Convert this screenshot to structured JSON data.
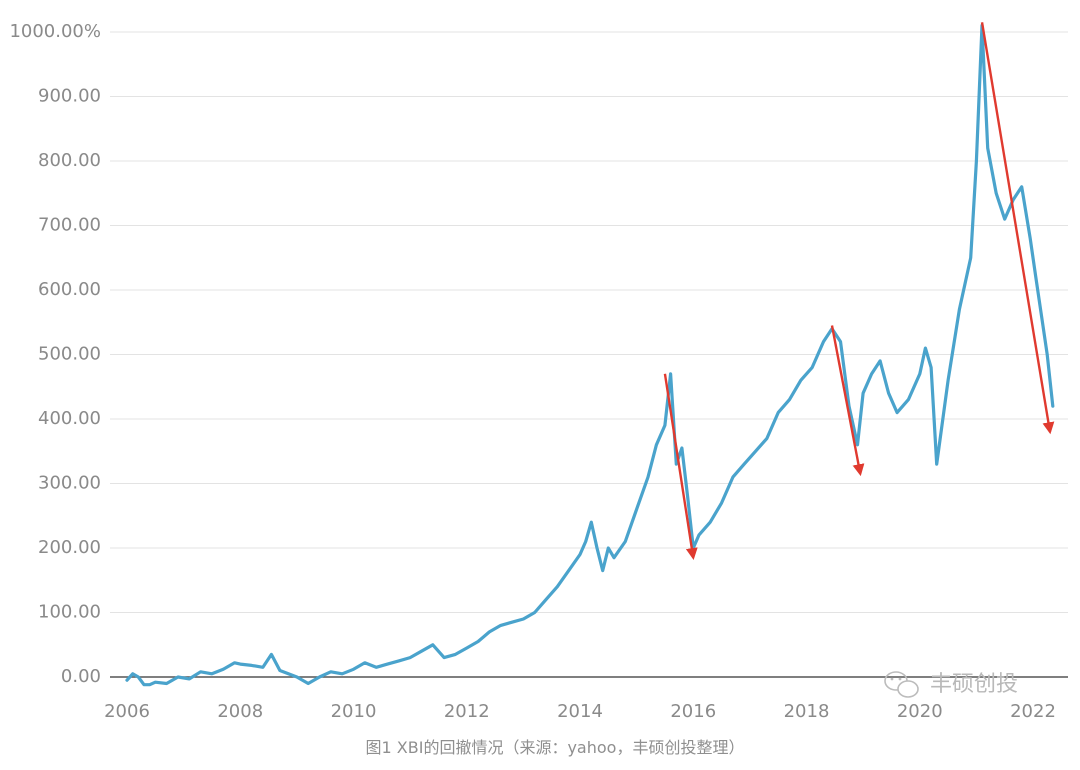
{
  "chart_data": {
    "type": "line",
    "title": "",
    "caption": "图1 XBI的回撤情况（来源：yahoo，丰硕创投整理）",
    "xlabel": "",
    "ylabel": "",
    "xlim": [
      2006,
      2022.4
    ],
    "ylim": [
      0,
      1000
    ],
    "grid": true,
    "y_ticks": [
      {
        "value": 0,
        "label": "0.00"
      },
      {
        "value": 100,
        "label": "100.00"
      },
      {
        "value": 200,
        "label": "200.00"
      },
      {
        "value": 300,
        "label": "300.00"
      },
      {
        "value": 400,
        "label": "400.00"
      },
      {
        "value": 500,
        "label": "500.00"
      },
      {
        "value": 600,
        "label": "600.00"
      },
      {
        "value": 700,
        "label": "700.00"
      },
      {
        "value": 800,
        "label": "800.00"
      },
      {
        "value": 900,
        "label": "900.00"
      },
      {
        "value": 1000,
        "label": "1000.00%"
      }
    ],
    "x_ticks": [
      {
        "value": 2006,
        "label": "2006"
      },
      {
        "value": 2008,
        "label": "2008"
      },
      {
        "value": 2010,
        "label": "2010"
      },
      {
        "value": 2012,
        "label": "2012"
      },
      {
        "value": 2014,
        "label": "2014"
      },
      {
        "value": 2016,
        "label": "2016"
      },
      {
        "value": 2018,
        "label": "2018"
      },
      {
        "value": 2020,
        "label": "2020"
      },
      {
        "value": 2022,
        "label": "2022"
      }
    ],
    "series": [
      {
        "color": "#4aa3cc",
        "x": [
          2006.0,
          2006.1,
          2006.2,
          2006.3,
          2006.4,
          2006.5,
          2006.7,
          2006.9,
          2007.1,
          2007.3,
          2007.5,
          2007.7,
          2007.9,
          2008.0,
          2008.2,
          2008.4,
          2008.55,
          2008.7,
          2008.85,
          2009.0,
          2009.2,
          2009.4,
          2009.6,
          2009.8,
          2010.0,
          2010.2,
          2010.4,
          2010.6,
          2010.8,
          2011.0,
          2011.2,
          2011.4,
          2011.6,
          2011.8,
          2012.0,
          2012.2,
          2012.4,
          2012.6,
          2012.8,
          2013.0,
          2013.2,
          2013.4,
          2013.6,
          2013.8,
          2014.0,
          2014.1,
          2014.2,
          2014.3,
          2014.4,
          2014.5,
          2014.6,
          2014.8,
          2015.0,
          2015.2,
          2015.35,
          2015.5,
          2015.6,
          2015.7,
          2015.8,
          2015.9,
          2016.0,
          2016.1,
          2016.3,
          2016.5,
          2016.7,
          2016.9,
          2017.1,
          2017.3,
          2017.5,
          2017.7,
          2017.9,
          2018.1,
          2018.3,
          2018.45,
          2018.6,
          2018.75,
          2018.9,
          2019.0,
          2019.15,
          2019.3,
          2019.45,
          2019.6,
          2019.8,
          2020.0,
          2020.1,
          2020.2,
          2020.3,
          2020.5,
          2020.7,
          2020.9,
          2021.0,
          2021.1,
          2021.2,
          2021.35,
          2021.5,
          2021.65,
          2021.8,
          2021.95,
          2022.05,
          2022.15,
          2022.25,
          2022.35
        ],
        "values": [
          -5,
          5,
          0,
          -12,
          -12,
          -8,
          -10,
          0,
          -3,
          8,
          5,
          12,
          22,
          20,
          18,
          15,
          35,
          10,
          5,
          0,
          -10,
          0,
          8,
          5,
          12,
          22,
          15,
          20,
          25,
          30,
          40,
          50,
          30,
          35,
          45,
          55,
          70,
          80,
          85,
          90,
          100,
          120,
          140,
          165,
          190,
          210,
          240,
          200,
          165,
          200,
          185,
          210,
          260,
          310,
          360,
          390,
          470,
          330,
          355,
          280,
          200,
          220,
          240,
          270,
          310,
          330,
          350,
          370,
          410,
          430,
          460,
          480,
          520,
          540,
          520,
          420,
          360,
          440,
          470,
          490,
          440,
          410,
          430,
          470,
          510,
          480,
          330,
          460,
          570,
          650,
          800,
          1010,
          820,
          750,
          710,
          740,
          760,
          680,
          620,
          560,
          500,
          420
        ]
      }
    ],
    "drawdowns": [
      {
        "from": [
          2015.5,
          470
        ],
        "to": [
          2016.0,
          185
        ],
        "color": "#e03a2f"
      },
      {
        "from": [
          2018.45,
          545
        ],
        "to": [
          2018.95,
          315
        ],
        "color": "#e03a2f"
      },
      {
        "from": [
          2021.1,
          1015
        ],
        "to": [
          2022.3,
          380
        ],
        "color": "#e03a2f"
      }
    ]
  },
  "watermark": {
    "text": "丰硕创投",
    "icon": "wechat-icon"
  }
}
